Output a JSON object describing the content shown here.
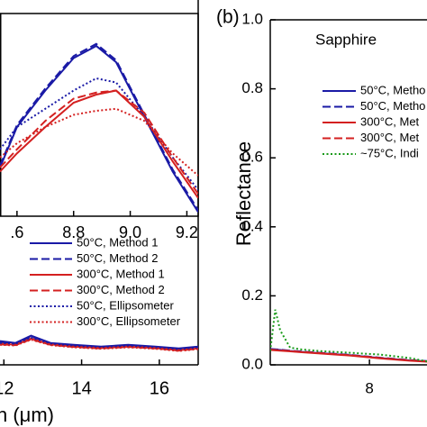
{
  "chart_data": [
    {
      "type": "line",
      "xlabel": "h (μm)",
      "xlim": [
        11.9,
        17.0
      ],
      "ylim": [
        0,
        1
      ],
      "xticks": [
        12,
        14,
        16
      ],
      "x": [
        11.9,
        12.3,
        12.7,
        13.2,
        13.8,
        14.5,
        15.2,
        15.9,
        16.5,
        17.0
      ],
      "series": [
        {
          "name": "50°C, Method 1",
          "color": "#1a1aa6",
          "style": "solid",
          "values": [
            0.065,
            0.06,
            0.08,
            0.06,
            0.055,
            0.05,
            0.055,
            0.05,
            0.045,
            0.05
          ]
        },
        {
          "name": "50°C, Method 2",
          "color": "#1a1aa6",
          "style": "dashed",
          "values": [
            0.062,
            0.058,
            0.078,
            0.059,
            0.053,
            0.049,
            0.053,
            0.048,
            0.044,
            0.048
          ]
        },
        {
          "name": "300°C, Method 1",
          "color": "#d42020",
          "style": "solid",
          "values": [
            0.058,
            0.055,
            0.072,
            0.056,
            0.05,
            0.046,
            0.05,
            0.046,
            0.04,
            0.045
          ]
        },
        {
          "name": "300°C, Method 2",
          "color": "#d42020",
          "style": "dashed",
          "values": [
            0.056,
            0.054,
            0.07,
            0.055,
            0.049,
            0.045,
            0.049,
            0.045,
            0.039,
            0.044
          ]
        },
        {
          "name": "50°C, Ellipsometer",
          "color": "#1a1aa6",
          "style": "dotted",
          "values": [
            0.06,
            0.057,
            0.075,
            0.058,
            0.052,
            0.048,
            0.052,
            0.047,
            0.043,
            0.047
          ]
        },
        {
          "name": "300°C, Ellipsometer",
          "color": "#d42020",
          "style": "dotted",
          "values": [
            0.055,
            0.053,
            0.069,
            0.054,
            0.048,
            0.044,
            0.048,
            0.044,
            0.038,
            0.043
          ]
        }
      ]
    },
    {
      "type": "line",
      "xlim": [
        8.54,
        9.24
      ],
      "ylim": [
        0,
        1
      ],
      "xticks": [
        {
          "value": 8.6,
          "label": ".6"
        },
        8.8,
        {
          "value": 9.0,
          "label": "9.0"
        },
        9.2
      ],
      "x": [
        8.54,
        8.6,
        8.7,
        8.8,
        8.88,
        8.95,
        9.05,
        9.15,
        9.24
      ],
      "series": [
        {
          "color": "#1a1aa6",
          "style": "solid",
          "values": [
            0.24,
            0.44,
            0.62,
            0.78,
            0.84,
            0.76,
            0.49,
            0.22,
            0.02
          ]
        },
        {
          "color": "#1a1aa6",
          "style": "dashed",
          "values": [
            0.25,
            0.45,
            0.63,
            0.79,
            0.85,
            0.77,
            0.5,
            0.23,
            0.03
          ]
        },
        {
          "color": "#1a1aa6",
          "style": "dotted",
          "values": [
            0.33,
            0.44,
            0.53,
            0.62,
            0.68,
            0.66,
            0.49,
            0.29,
            0.13
          ]
        },
        {
          "color": "#d42020",
          "style": "solid",
          "values": [
            0.22,
            0.31,
            0.44,
            0.56,
            0.6,
            0.62,
            0.49,
            0.27,
            0.09
          ]
        },
        {
          "color": "#d42020",
          "style": "dashed",
          "values": [
            0.24,
            0.33,
            0.47,
            0.58,
            0.61,
            0.62,
            0.51,
            0.29,
            0.11
          ]
        },
        {
          "color": "#d42020",
          "style": "dotted",
          "values": [
            0.29,
            0.36,
            0.44,
            0.5,
            0.52,
            0.53,
            0.47,
            0.31,
            0.2
          ]
        }
      ]
    },
    {
      "type": "line",
      "panel_label": "(b)",
      "annotation": "Sapphire",
      "ylabel": "Reflectance",
      "xlim": [
        7,
        8.58
      ],
      "ylim": [
        0,
        1
      ],
      "xticks": [
        8
      ],
      "yticks": [
        {
          "value": 0,
          "label": "0.0"
        },
        0.2,
        0.4,
        0.6,
        0.8,
        {
          "value": 1,
          "label": "1.0"
        }
      ],
      "x": [
        7,
        7.05,
        7.1,
        7.2,
        7.3,
        7.5,
        7.8,
        8.1,
        8.4,
        8.58
      ],
      "series": [
        {
          "name": "50°C, Metho",
          "color": "#1a1aa6",
          "style": "solid",
          "values": [
            0.045,
            0.044,
            0.043,
            0.04,
            0.038,
            0.034,
            0.028,
            0.02,
            0.013,
            0.01
          ]
        },
        {
          "name": "50°C, Metho",
          "color": "#1a1aa6",
          "style": "dashed",
          "values": [
            0.046,
            0.045,
            0.044,
            0.041,
            0.039,
            0.035,
            0.029,
            0.021,
            0.014,
            0.011
          ]
        },
        {
          "name": "300°C, Met",
          "color": "#d42020",
          "style": "solid",
          "values": [
            0.043,
            0.042,
            0.041,
            0.039,
            0.037,
            0.033,
            0.027,
            0.019,
            0.012,
            0.009
          ]
        },
        {
          "name": "300°C, Met",
          "color": "#d42020",
          "style": "dashed",
          "values": [
            0.044,
            0.043,
            0.042,
            0.04,
            0.038,
            0.034,
            0.028,
            0.02,
            0.013,
            0.01
          ]
        },
        {
          "name": "~75°C, Indi",
          "color": "#1a9a1a",
          "style": "dotted",
          "values": [
            0.04,
            0.16,
            0.1,
            0.05,
            0.045,
            0.04,
            0.035,
            0.03,
            0.02,
            0.01
          ]
        }
      ]
    }
  ]
}
